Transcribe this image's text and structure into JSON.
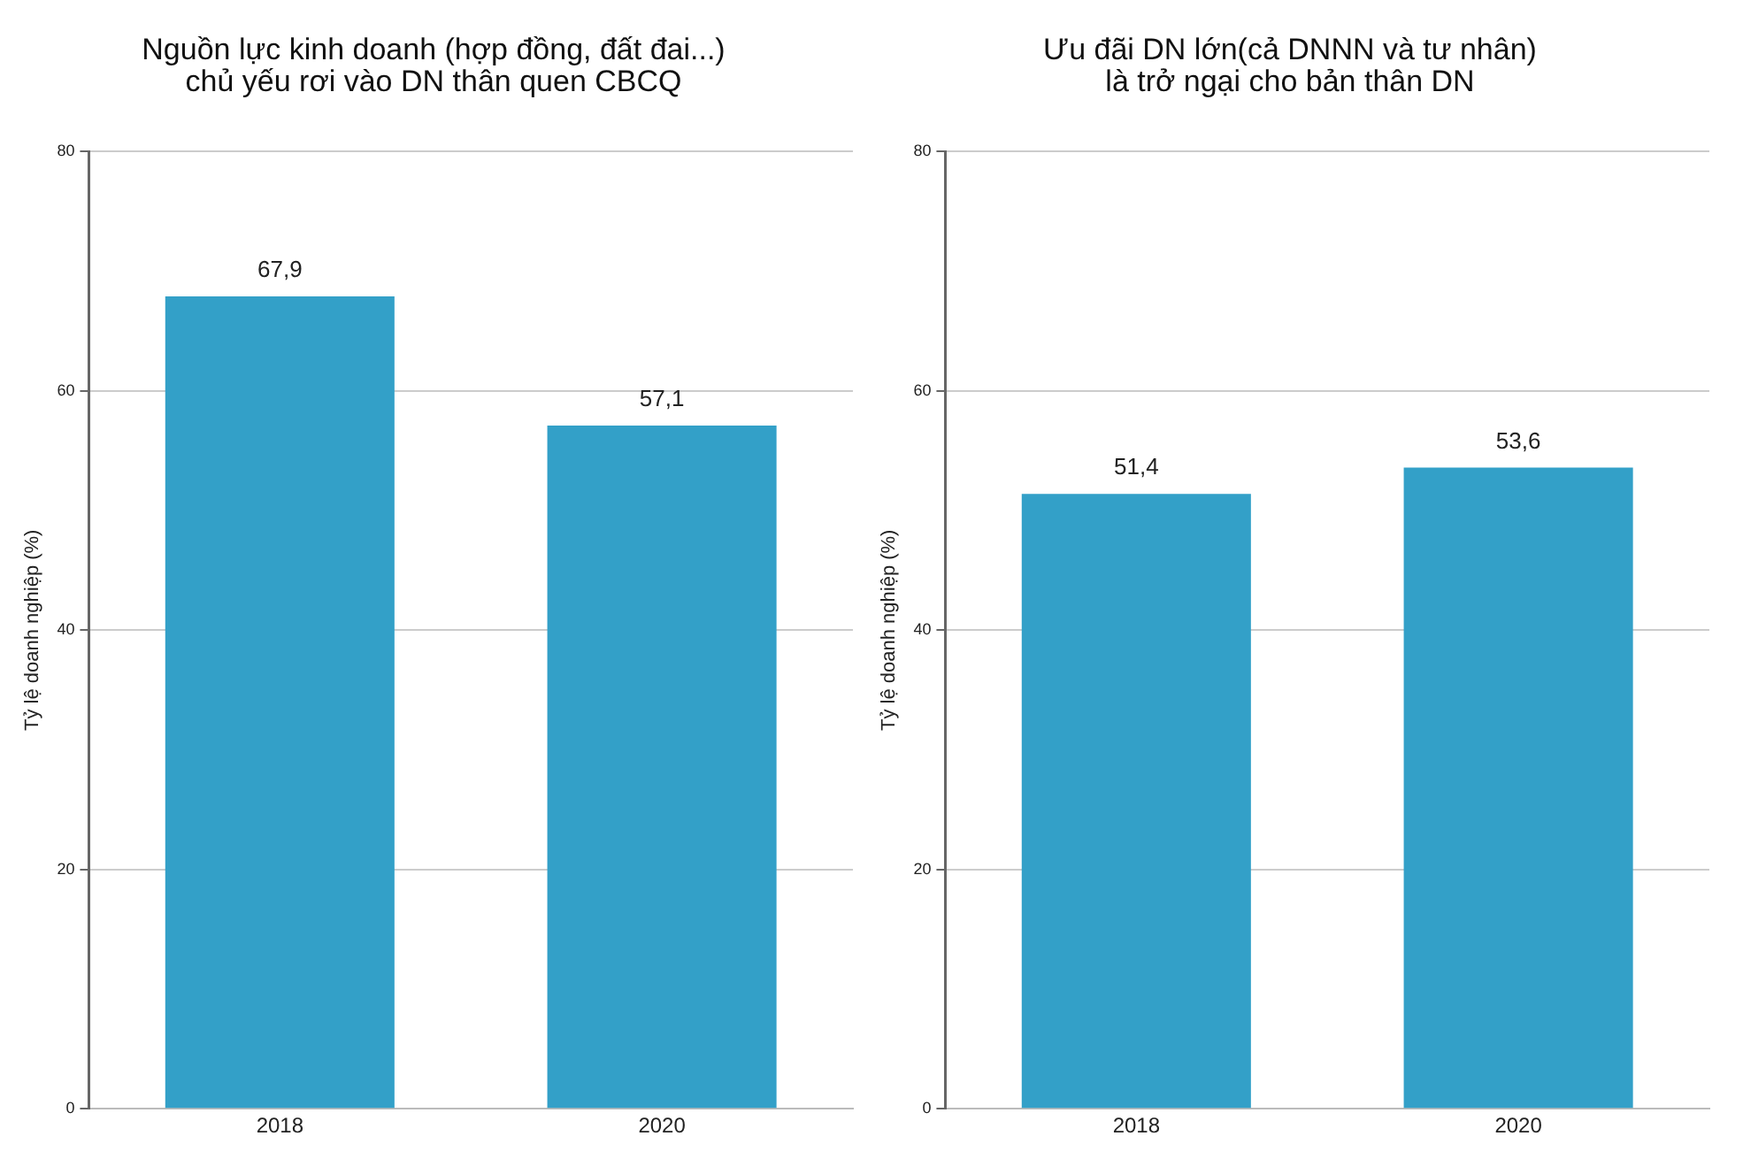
{
  "chart_data": [
    {
      "type": "bar",
      "title": "Nguồn lực kinh doanh (hợp đồng, đất đai...)\nchủ yếu rơi vào DN thân quen CBCQ",
      "ylabel": "Tỷ lệ doanh nghiệp (%)",
      "categories": [
        "2018",
        "2020"
      ],
      "values": [
        67.9,
        57.1
      ],
      "value_labels": [
        "67,9",
        "57,1"
      ],
      "color": "#33a0c8",
      "ylim": [
        0,
        80
      ],
      "yticks": [
        0,
        20,
        40,
        60,
        80
      ],
      "grid": "y"
    },
    {
      "type": "bar",
      "title": "Ưu đãi DN lớn(cả DNNN và tư nhân)\nlà trở ngại cho bản thân DN",
      "ylabel": "Tỷ lệ doanh nghiệp (%)",
      "categories": [
        "2018",
        "2020"
      ],
      "values": [
        51.4,
        53.6
      ],
      "value_labels": [
        "51,4",
        "53,6"
      ],
      "color": "#33a0c8",
      "ylim": [
        0,
        80
      ],
      "yticks": [
        0,
        20,
        40,
        60,
        80
      ],
      "grid": "y"
    }
  ]
}
